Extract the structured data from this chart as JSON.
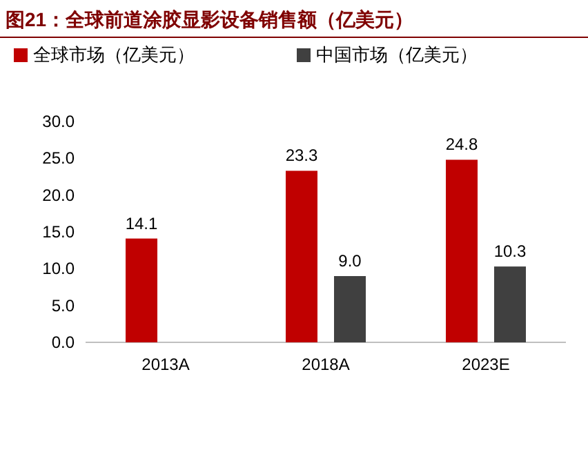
{
  "chart_data": {
    "type": "bar",
    "title": "图21：全球前道涂胶显影设备销售额（亿美元）",
    "categories": [
      "2013A",
      "2018A",
      "2023E"
    ],
    "series": [
      {
        "name": "全球市场（亿美元）",
        "color": "#c00000",
        "values": [
          14.1,
          23.3,
          24.8
        ],
        "value_labels": [
          "14.1",
          "23.3",
          "24.8"
        ]
      },
      {
        "name": "中国市场（亿美元）",
        "color": "#404040",
        "values": [
          null,
          9.0,
          10.3
        ],
        "value_labels": [
          null,
          "9.0",
          "10.3"
        ]
      }
    ],
    "ylim": [
      0,
      30
    ],
    "yticks": [
      {
        "value": 0,
        "label": "0.0"
      },
      {
        "value": 5,
        "label": "5.0"
      },
      {
        "value": 10,
        "label": "10.0"
      },
      {
        "value": 15,
        "label": "15.0"
      },
      {
        "value": 20,
        "label": "20.0"
      },
      {
        "value": 25,
        "label": "25.0"
      },
      {
        "value": 30,
        "label": "30.0"
      }
    ],
    "legend": "top left",
    "grid": false
  }
}
